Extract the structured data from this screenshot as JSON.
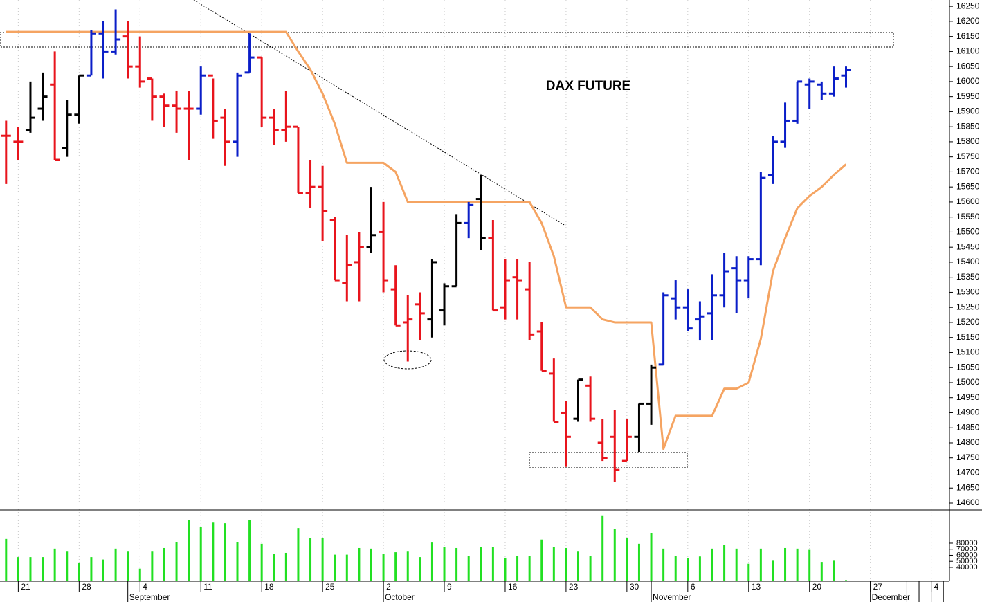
{
  "chart_data": {
    "type": "ohlc",
    "annotation": "DAX FUTURE",
    "categories": [
      null,
      "21",
      null,
      null,
      null,
      null,
      "28",
      null,
      null,
      null,
      null,
      "4",
      null,
      null,
      null,
      null,
      "11",
      null,
      null,
      null,
      null,
      "18",
      null,
      null,
      null,
      null,
      "25",
      null,
      null,
      null,
      null,
      "2",
      null,
      null,
      null,
      null,
      "9",
      null,
      null,
      null,
      null,
      "16",
      null,
      null,
      null,
      null,
      "23",
      null,
      null,
      null,
      null,
      "30",
      null,
      null,
      null,
      null,
      "6",
      null,
      null,
      null,
      null,
      "13",
      null,
      null,
      null,
      null,
      "20",
      null,
      null,
      null,
      null,
      "27",
      null,
      null,
      null,
      null,
      "4",
      null
    ],
    "months": [
      null,
      null,
      null,
      null,
      null,
      null,
      null,
      null,
      null,
      null,
      "September",
      null,
      null,
      null,
      null,
      null,
      null,
      null,
      null,
      null,
      null,
      null,
      null,
      null,
      null,
      null,
      null,
      null,
      null,
      null,
      null,
      "October",
      null,
      null,
      null,
      null,
      null,
      null,
      null,
      null,
      null,
      null,
      null,
      null,
      null,
      null,
      null,
      null,
      null,
      null,
      null,
      null,
      null,
      "November",
      null,
      null,
      null,
      null,
      null,
      null,
      null,
      null,
      null,
      null,
      null,
      null,
      null,
      null,
      null,
      null,
      null,
      "December",
      null,
      null
    ],
    "open": [
      15820,
      15800,
      15840,
      15910,
      15990,
      15780,
      15890,
      16020,
      16160,
      16100,
      16150,
      16050,
      16010,
      15950,
      15920,
      15910,
      15910,
      16020,
      15880,
      15800,
      16030,
      16080,
      15880,
      15840,
      15850,
      15630,
      15650,
      15540,
      15330,
      15400,
      15450,
      15500,
      15310,
      15200,
      15260,
      15210,
      15240,
      15320,
      15530,
      15610,
      15480,
      15250,
      15350,
      15310,
      15170,
      15030,
      14900,
      14880,
      14990,
      14800,
      14820,
      14740,
      14820,
      14930,
      15060,
      15280,
      15250,
      15210,
      15230,
      15290,
      15380,
      15340,
      15410,
      15690,
      15800,
      15870,
      15990,
      15990,
      15960,
      16020,
      null,
      null,
      null,
      null,
      null,
      null,
      null,
      null
    ],
    "high": [
      15870,
      15850,
      16000,
      16030,
      16100,
      15940,
      16020,
      16170,
      16200,
      16240,
      16200,
      16150,
      16010,
      15960,
      15970,
      15970,
      16050,
      16010,
      15910,
      16030,
      16160,
      16080,
      15910,
      15970,
      15850,
      15740,
      15720,
      15550,
      15490,
      15500,
      15650,
      15600,
      15390,
      15290,
      15300,
      15410,
      15330,
      15560,
      15600,
      15690,
      15540,
      15410,
      15410,
      15400,
      15200,
      15080,
      14940,
      15010,
      15020,
      14880,
      14910,
      14880,
      14930,
      15060,
      15300,
      15340,
      15310,
      15270,
      15360,
      15430,
      15420,
      15420,
      15700,
      15820,
      15930,
      16000,
      16010,
      16000,
      16050,
      16050,
      null,
      null,
      null,
      null,
      null,
      null,
      null,
      null
    ],
    "low": [
      15660,
      15740,
      15830,
      15870,
      15740,
      15750,
      15860,
      16020,
      16010,
      16090,
      16010,
      15980,
      15870,
      15850,
      15830,
      15740,
      15890,
      15810,
      15720,
      15750,
      16030,
      15850,
      15790,
      15800,
      15630,
      15580,
      15470,
      15340,
      15270,
      15270,
      15430,
      15300,
      15190,
      15070,
      15140,
      15150,
      15190,
      15320,
      15480,
      15440,
      15240,
      15210,
      15210,
      15140,
      15040,
      14870,
      14720,
      14870,
      14870,
      14740,
      14670,
      14740,
      14770,
      14860,
      15060,
      15210,
      15170,
      15140,
      15140,
      15250,
      15230,
      15280,
      15390,
      15660,
      15780,
      15860,
      15910,
      15940,
      15950,
      15980,
      null,
      null,
      null,
      null,
      null,
      null,
      null,
      null
    ],
    "close": [
      15820,
      15800,
      15880,
      15950,
      15740,
      15890,
      16020,
      16160,
      16100,
      16140,
      16050,
      16000,
      15950,
      15920,
      15910,
      15910,
      16020,
      15870,
      15800,
      16020,
      16080,
      15880,
      15840,
      15850,
      15630,
      15650,
      15570,
      15340,
      15390,
      15450,
      15490,
      15340,
      15190,
      15210,
      15230,
      15400,
      15320,
      15530,
      15590,
      15480,
      15240,
      15340,
      15340,
      15160,
      15040,
      14870,
      14820,
      15010,
      14880,
      14750,
      14710,
      14820,
      14930,
      15050,
      15290,
      15250,
      15180,
      15220,
      15290,
      15370,
      15340,
      15410,
      15680,
      15800,
      15870,
      16000,
      16000,
      15960,
      16010,
      16040,
      null,
      null,
      null,
      null,
      null,
      null,
      null,
      null
    ],
    "bar_colors": [
      "r",
      "r",
      "k",
      "k",
      "r",
      "k",
      "k",
      "b",
      "b",
      "b",
      "r",
      "r",
      "r",
      "r",
      "r",
      "r",
      "b",
      "r",
      "r",
      "b",
      "b",
      "r",
      "r",
      "r",
      "r",
      "r",
      "r",
      "r",
      "r",
      "r",
      "k",
      "r",
      "r",
      "r",
      "r",
      "k",
      "k",
      "k",
      "b",
      "k",
      "r",
      "r",
      "r",
      "r",
      "r",
      "r",
      "r",
      "k",
      "r",
      "r",
      "r",
      "r",
      "k",
      "k",
      "b",
      "b",
      "b",
      "b",
      "b",
      "b",
      "b",
      "b",
      "b",
      "b",
      "b",
      "b",
      "b",
      "b",
      "b",
      "b",
      null,
      null,
      null,
      null,
      null,
      null,
      null,
      null
    ],
    "palette": {
      "r": "#e8141c",
      "k": "#000000",
      "b": "#0a1ec8"
    },
    "ma": {
      "color": "#f5a462",
      "values": [
        16165,
        16165,
        16165,
        16165,
        16165,
        16165,
        16165,
        16165,
        16165,
        16165,
        16165,
        16165,
        16165,
        16165,
        16165,
        16165,
        16165,
        16165,
        16165,
        16165,
        16165,
        16165,
        16165,
        16165,
        16100,
        16040,
        15960,
        15860,
        15730,
        15730,
        15730,
        15730,
        15700,
        15600,
        15600,
        15600,
        15600,
        15600,
        15600,
        15600,
        15600,
        15600,
        15600,
        15600,
        15530,
        15420,
        15250,
        15250,
        15250,
        15210,
        15200,
        15200,
        15200,
        15200,
        14780,
        14890,
        14890,
        14890,
        14890,
        14980,
        14980,
        15000,
        15145,
        15370,
        15480,
        15580,
        15620,
        15650,
        15690,
        15725,
        null,
        null,
        null,
        null,
        null,
        null,
        null,
        null
      ]
    },
    "ylim": [
      14577,
      16271
    ],
    "yticks": [
      14600,
      14650,
      14700,
      14750,
      14800,
      14850,
      14900,
      14950,
      15000,
      15050,
      15100,
      15150,
      15200,
      15250,
      15300,
      15350,
      15400,
      15450,
      15500,
      15550,
      15600,
      15650,
      15700,
      15750,
      15800,
      15850,
      15900,
      15950,
      16000,
      16050,
      16100,
      16150,
      16200,
      16250
    ],
    "volume": {
      "color": "#22e022",
      "values": [
        87000,
        57000,
        57000,
        57000,
        71000,
        66000,
        48000,
        57000,
        53000,
        71000,
        66000,
        38000,
        66000,
        72000,
        82000,
        118000,
        107000,
        114000,
        113000,
        82000,
        118000,
        79000,
        62000,
        64000,
        105000,
        88000,
        89000,
        61000,
        61000,
        72000,
        71000,
        62000,
        65000,
        66000,
        57000,
        81000,
        74000,
        72000,
        59000,
        74000,
        74000,
        56000,
        59000,
        59000,
        86000,
        74000,
        72000,
        66000,
        59000,
        126000,
        104000,
        88000,
        79000,
        97000,
        71000,
        59000,
        55000,
        58000,
        71000,
        77000,
        71000,
        46000,
        71000,
        51000,
        72000,
        71000,
        69000,
        49000,
        51000,
        19000,
        null,
        null,
        null,
        null,
        null,
        null,
        null,
        null
      ],
      "ylim": [
        17100,
        133700
      ],
      "yticks": [
        40000,
        50000,
        60000,
        70000,
        80000
      ]
    },
    "grid": true
  }
}
